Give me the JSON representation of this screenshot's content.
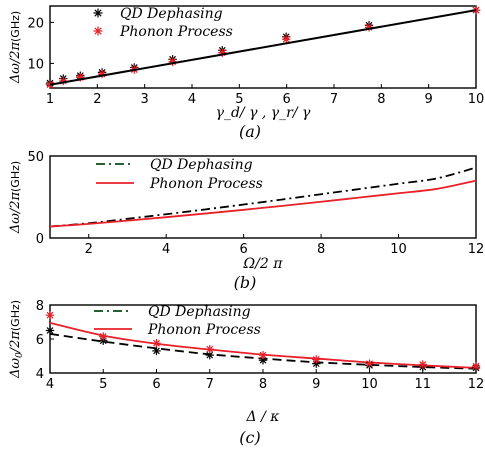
{
  "colors": {
    "black": "#000000",
    "red": "#e8202a",
    "dashdot_green": "#0a4a1a"
  },
  "chart_data": [
    {
      "type": "scatter",
      "caption": "(a)",
      "ylabel": "Δω/2π",
      "ylabel_unit": "(GHz)",
      "xlabel": "γ_d/ γ , γ_r/ γ",
      "xlim": [
        1,
        10
      ],
      "ylim": [
        4,
        24
      ],
      "xticks": [
        1,
        2,
        3,
        4,
        5,
        6,
        7,
        8,
        9,
        10
      ],
      "yticks": [
        10,
        20
      ],
      "legend": [
        {
          "label": "QD Dephasing",
          "marker": "asterisk",
          "color": "#000000"
        },
        {
          "label": "Phonon Process",
          "marker": "asterisk",
          "color": "#e8202a"
        }
      ],
      "series": [
        {
          "name": "QD Dephasing",
          "style": "points",
          "color": "#000000",
          "x": [
            1,
            1.28,
            1.64,
            2.1,
            2.78,
            3.59,
            4.64,
            5.99,
            7.74,
            10
          ],
          "y": [
            5.2,
            6.3,
            7.0,
            7.8,
            9.0,
            11.0,
            13.2,
            16.5,
            19.3,
            23.0
          ]
        },
        {
          "name": "Phonon Process",
          "style": "points",
          "color": "#e8202a",
          "x": [
            1,
            1.28,
            1.64,
            2.1,
            2.78,
            3.59,
            4.64,
            5.99,
            7.74,
            10
          ],
          "y": [
            4.8,
            5.7,
            6.6,
            7.4,
            8.5,
            10.4,
            12.6,
            15.9,
            18.8,
            23.0
          ]
        },
        {
          "style": "line",
          "color": "#000000",
          "x": [
            1,
            10
          ],
          "y": [
            4.8,
            23.0
          ]
        }
      ]
    },
    {
      "type": "line",
      "caption": "(b)",
      "ylabel": "Δω/2π",
      "ylabel_unit": "(GHz)",
      "xlabel": "Ω/2 π",
      "xlim": [
        1,
        12
      ],
      "ylim": [
        0,
        50
      ],
      "xticks": [
        2,
        4,
        6,
        8,
        10,
        12
      ],
      "yticks": [
        0,
        50
      ],
      "legend": [
        {
          "label": "QD Dephasing",
          "line": "dashdot",
          "color": "#0a4a1a"
        },
        {
          "label": "Phonon Process",
          "line": "solid",
          "color": "#e8202a"
        }
      ],
      "series": [
        {
          "name": "QD Dephasing",
          "style": "dashdot",
          "color": "#000000",
          "x": [
            1,
            2,
            3,
            4,
            5,
            6,
            7,
            8,
            9,
            10,
            11,
            12
          ],
          "y": [
            7.0,
            9.0,
            11.7,
            14.5,
            17.4,
            20.4,
            23.5,
            26.7,
            29.9,
            33.1,
            36.4,
            43.0
          ]
        },
        {
          "name": "Phonon Process",
          "style": "solid",
          "color": "#e8202a",
          "x": [
            1,
            2,
            3,
            4,
            5,
            6,
            7,
            8,
            9,
            10,
            11,
            12
          ],
          "y": [
            7.0,
            8.6,
            10.6,
            12.7,
            14.9,
            17.2,
            19.6,
            22.1,
            24.7,
            27.3,
            30.0,
            35.0
          ]
        }
      ]
    },
    {
      "type": "line",
      "caption": "(c)",
      "ylabel": "Δω",
      "ylabel_sub": "0",
      "ylabel_tail": "/2π",
      "ylabel_unit": "(GHz)",
      "xlabel": "Δ / κ",
      "xlim": [
        4,
        12
      ],
      "ylim": [
        4,
        8
      ],
      "xticks": [
        4,
        5,
        6,
        7,
        8,
        9,
        10,
        11,
        12
      ],
      "yticks": [
        4,
        6,
        8
      ],
      "legend": [
        {
          "label": "QD Dephasing",
          "line": "dashdot",
          "color": "#0a4a1a"
        },
        {
          "label": "Phonon Process",
          "line": "solid",
          "color": "#e8202a"
        }
      ],
      "series": [
        {
          "name": "QD Dephasing",
          "style": "dashed",
          "color": "#000000",
          "x": [
            4,
            5,
            6,
            7,
            8,
            9,
            10,
            11,
            12
          ],
          "y": [
            6.3,
            5.85,
            5.45,
            5.1,
            4.85,
            4.63,
            4.48,
            4.35,
            4.25
          ]
        },
        {
          "name": "Phonon Process",
          "style": "solid",
          "color": "#e8202a",
          "x": [
            4,
            5,
            6,
            7,
            8,
            9,
            10,
            11,
            12
          ],
          "y": [
            6.95,
            6.2,
            5.72,
            5.38,
            5.08,
            4.85,
            4.62,
            4.45,
            4.3
          ]
        },
        {
          "style": "points",
          "color": "#000000",
          "x": [
            4,
            5,
            6,
            7,
            8,
            9,
            10,
            11,
            12
          ],
          "y": [
            6.5,
            5.9,
            5.3,
            5.05,
            4.75,
            4.55,
            4.45,
            4.35,
            4.3
          ]
        },
        {
          "style": "points",
          "color": "#e8202a",
          "x": [
            4,
            5,
            6,
            7,
            8,
            9,
            10,
            11,
            12
          ],
          "y": [
            7.4,
            6.15,
            5.75,
            5.4,
            5.05,
            4.8,
            4.55,
            4.5,
            4.4
          ]
        }
      ]
    }
  ]
}
